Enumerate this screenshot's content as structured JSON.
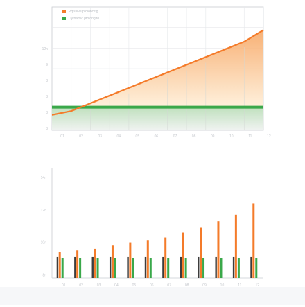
{
  "colors": {
    "orange": "#f47b2a",
    "green": "#3aa84a",
    "axis": "#c9ccd1",
    "grid": "#e6e8eb",
    "tick": "#c4c7cc"
  },
  "chart_data": [
    {
      "type": "area",
      "legend": [
        "Pqlssive pfoloncitig",
        "Dyfnamic ptolongiro"
      ],
      "legend_position": "top-left",
      "categories": [
        "01",
        "02",
        "03",
        "04",
        "05",
        "06",
        "07",
        "08",
        "09",
        "10",
        "11",
        "12"
      ],
      "y_ticks": [
        "12n",
        "9",
        "8",
        "8",
        "8",
        "8"
      ],
      "series": [
        {
          "name": "Pqlssive pfoloncitig",
          "values": [
            2.8,
            2.9,
            3.1,
            3.3,
            3.5,
            3.7,
            3.9,
            4.1,
            4.3,
            4.5,
            4.7,
            5.0
          ]
        },
        {
          "name": "Dyfnamic ptolongiro",
          "values": [
            3.0,
            3.0,
            3.0,
            3.0,
            3.0,
            3.0,
            3.0,
            3.0,
            3.0,
            3.0,
            3.0,
            3.0
          ]
        }
      ],
      "ylim": [
        2.4,
        5.6
      ],
      "grid": true
    },
    {
      "type": "bar",
      "categories": [
        "01",
        "02",
        "03",
        "04",
        "05",
        "06",
        "07",
        "08",
        "09",
        "10",
        "11",
        "12"
      ],
      "y_ticks": [
        "14n",
        "12n",
        "10n",
        "8n"
      ],
      "series": [
        {
          "name": "Pqlssive pfoloncitig",
          "values": [
            9.4,
            9.5,
            9.6,
            9.8,
            10.0,
            10.1,
            10.3,
            10.6,
            10.9,
            11.3,
            11.7,
            12.4
          ]
        },
        {
          "name": "Dyfnamic ptolongiro",
          "values": [
            9.0,
            9.0,
            9.0,
            9.0,
            9.0,
            9.0,
            9.0,
            9.0,
            9.0,
            9.0,
            9.0,
            9.0
          ]
        }
      ],
      "ylim": [
        7.8,
        14.6
      ],
      "grid": true
    }
  ]
}
